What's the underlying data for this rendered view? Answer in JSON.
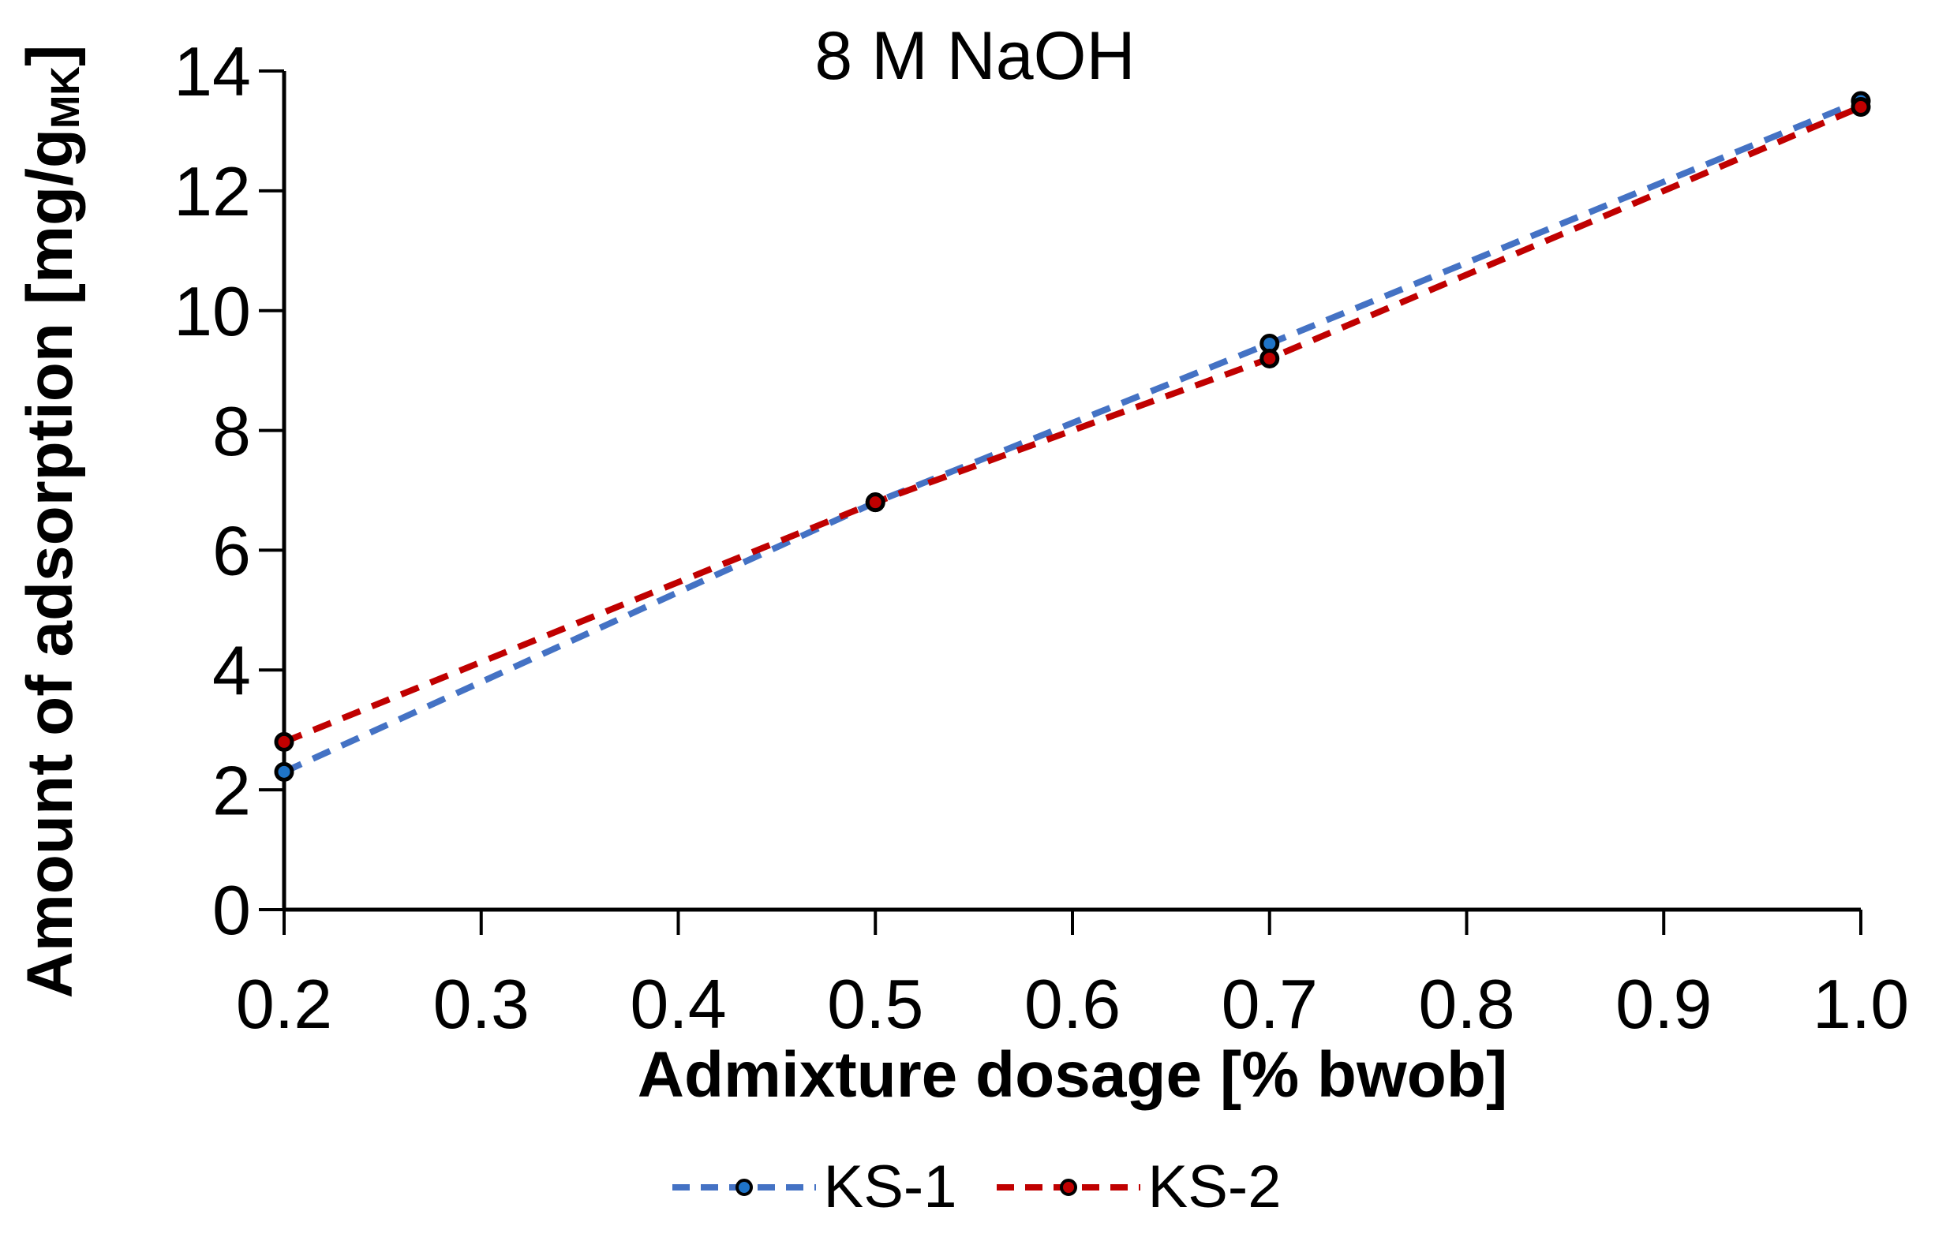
{
  "chart_data": {
    "type": "line",
    "title": "8 M NaOH",
    "xlabel": "Admixture dosage [% bwob]",
    "ylabel": "Amount of adsorption [mg/g_MK]",
    "ylabel_parts": {
      "main": "Amount of adsorption [mg/g",
      "sub": "MK",
      "end": "]"
    },
    "xlim": [
      0.2,
      1.0
    ],
    "ylim": [
      0,
      14
    ],
    "x_ticks": [
      0.2,
      0.3,
      0.4,
      0.5,
      0.6,
      0.7,
      0.8,
      0.9,
      1.0
    ],
    "x_tick_labels": [
      "0.2",
      "0.3",
      "0.4",
      "0.5",
      "0.6",
      "0.7",
      "0.8",
      "0.9",
      "1.0"
    ],
    "y_ticks": [
      0,
      2,
      4,
      6,
      8,
      10,
      12,
      14
    ],
    "y_tick_labels": [
      "0",
      "2",
      "4",
      "6",
      "8",
      "10",
      "12",
      "14"
    ],
    "x": [
      0.2,
      0.5,
      0.7,
      1.0
    ],
    "series": [
      {
        "name": "KS-1",
        "values": [
          2.3,
          6.8,
          9.45,
          13.5
        ],
        "line_color": "#4472C4",
        "marker_color": "#1F74C8"
      },
      {
        "name": "KS-2",
        "values": [
          2.8,
          6.8,
          9.2,
          13.4
        ],
        "line_color": "#C00000",
        "marker_color": "#C00000"
      }
    ],
    "line_style": "dashed",
    "marker": "circle",
    "marker_outline_color": "#000000",
    "axis_color": "#000000",
    "background": "#FFFFFF",
    "grid": false,
    "legend_position": "bottom"
  }
}
